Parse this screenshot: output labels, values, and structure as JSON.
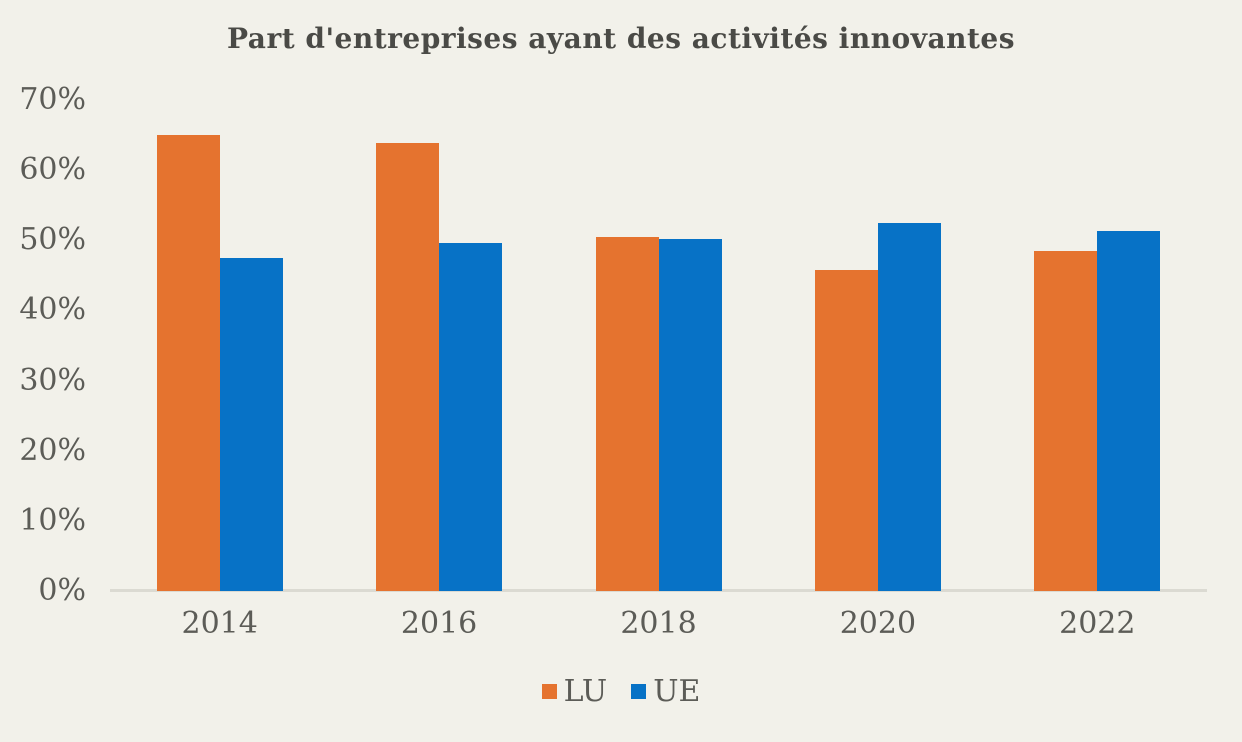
{
  "title": "Part d'entreprises ayant des activités innovantes",
  "chart_data": {
    "type": "bar",
    "title": "Part d'entreprises ayant des activités innovantes",
    "categories": [
      "2014",
      "2016",
      "2018",
      "2020",
      "2022"
    ],
    "series": [
      {
        "name": "LU",
        "color": "#e5732f",
        "values": [
          65.0,
          63.8,
          50.5,
          45.7,
          48.5
        ]
      },
      {
        "name": "UE",
        "color": "#0772c6",
        "values": [
          47.5,
          49.6,
          50.2,
          52.5,
          51.3
        ]
      }
    ],
    "xlabel": "",
    "ylabel": "",
    "ylim": [
      0,
      70
    ],
    "ytick_step": 10,
    "ytick_labels": [
      "0%",
      "10%",
      "20%",
      "30%",
      "40%",
      "50%",
      "60%",
      "70%"
    ],
    "grid": false,
    "legend_position": "bottom",
    "legend_labels": [
      "LU",
      "UE"
    ]
  },
  "colors": {
    "background": "#f2f1ea",
    "axis_line": "#dbdad2",
    "tick_text": "#5c5c57",
    "title_text": "#4a4a46",
    "series_lu": "#e5732f",
    "series_ue": "#0772c6"
  }
}
